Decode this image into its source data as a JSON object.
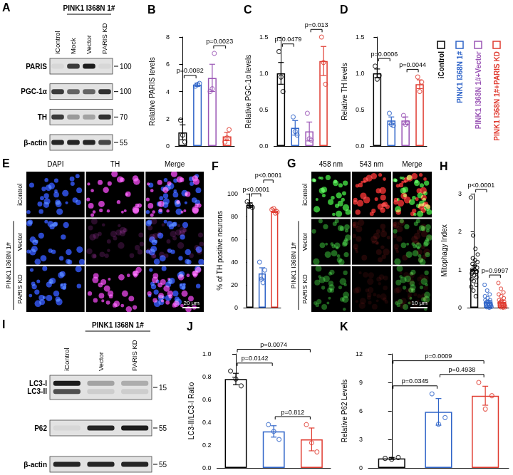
{
  "chart_data": [
    {
      "panel": "B",
      "type": "bar",
      "ylabel": "Relative PARIS levels",
      "categories": [
        null,
        null,
        null,
        null
      ],
      "values": [
        1.0,
        4.5,
        5.0,
        0.7
      ],
      "errors": [
        0.55,
        0.12,
        1.0,
        0.3
      ],
      "points": [
        [
          1.9,
          0.8,
          0.3
        ],
        [
          4.4,
          4.5,
          4.6
        ],
        [
          4.0,
          4.2,
          6.8
        ],
        [
          0.3,
          0.6,
          1.2
        ]
      ],
      "colors": [
        "#000000",
        "#2f64c8",
        "#9a55b5",
        "#e03c31"
      ],
      "ylim": [
        0,
        8
      ],
      "yticks": [
        0,
        2,
        4,
        6,
        8
      ],
      "comparisons": [
        {
          "groups": [
            0,
            1
          ],
          "label": "p=0.0082"
        },
        {
          "groups": [
            2,
            3
          ],
          "label": "p=0.0023"
        }
      ],
      "grid": false,
      "tick_labels": "y"
    },
    {
      "panel": "C",
      "type": "bar",
      "ylabel": "Relative PGC-1α levels",
      "categories": [
        null,
        null,
        null,
        null
      ],
      "values": [
        1.0,
        0.25,
        0.2,
        1.17
      ],
      "errors": [
        0.15,
        0.1,
        0.13,
        0.2
      ],
      "points": [
        [
          1.3,
          0.95,
          0.75
        ],
        [
          0.4,
          0.2,
          0.15
        ],
        [
          0.45,
          0.1,
          0.08
        ],
        [
          1.5,
          1.15,
          0.85
        ]
      ],
      "colors": [
        "#000000",
        "#2f64c8",
        "#9a55b5",
        "#e03c31"
      ],
      "ylim": [
        0,
        1.5
      ],
      "yticks": [
        {
          "value": 0,
          "label": "0.0"
        },
        {
          "value": 0.5,
          "label": "0.5"
        },
        {
          "value": 1,
          "label": "1.0"
        },
        {
          "value": 1.5,
          "label": "1.5"
        }
      ],
      "comparisons": [
        {
          "groups": [
            0,
            1
          ],
          "label": "p=0.0479"
        },
        {
          "groups": [
            2,
            3
          ],
          "label": "p=0.013"
        }
      ],
      "grid": false,
      "tick_labels": "y"
    },
    {
      "panel": "D",
      "type": "bar",
      "ylabel": "Relative TH levels",
      "categories": [
        null,
        null,
        null,
        null
      ],
      "values": [
        1.0,
        0.35,
        0.35,
        0.85
      ],
      "errors": [
        0.06,
        0.05,
        0.05,
        0.06
      ],
      "points": [
        [
          1.1,
          0.92,
          0.97
        ],
        [
          0.45,
          0.3,
          0.28
        ],
        [
          0.42,
          0.3,
          0.32
        ],
        [
          0.95,
          0.75,
          0.88
        ]
      ],
      "colors": [
        "#000000",
        "#2f64c8",
        "#9a55b5",
        "#e03c31"
      ],
      "ylim": [
        0,
        1.5
      ],
      "yticks": [
        {
          "value": 0,
          "label": "0.0"
        },
        {
          "value": 0.5,
          "label": "0.5"
        },
        {
          "value": 1,
          "label": "1.0"
        },
        {
          "value": 1.5,
          "label": "1.5"
        }
      ],
      "comparisons": [
        {
          "groups": [
            0,
            1
          ],
          "label": "p=0.0006"
        },
        {
          "groups": [
            2,
            3
          ],
          "label": "p=0.0044"
        }
      ],
      "grid": false,
      "tick_labels": "y"
    },
    {
      "panel": "F",
      "type": "bar",
      "ylabel": "% of TH positive neurons",
      "categories": [
        null,
        null,
        null
      ],
      "values": [
        90,
        30,
        85
      ],
      "errors": [
        2,
        5,
        1.5
      ],
      "points": [
        [
          93,
          88,
          90,
          89
        ],
        [
          40,
          33,
          22,
          25
        ],
        [
          86,
          84,
          83,
          87
        ]
      ],
      "colors": [
        "#000000",
        "#2f64c8",
        "#e03c31"
      ],
      "ylim": [
        0,
        100
      ],
      "yticks": [
        0,
        20,
        40,
        60,
        80,
        100
      ],
      "comparisons": [
        {
          "groups": [
            0,
            1
          ],
          "label": "p<0.0001"
        },
        {
          "groups": [
            1,
            2
          ],
          "label": "p<0.0001"
        }
      ],
      "grid": false,
      "tick_labels": "y"
    },
    {
      "panel": "H",
      "type": "bar",
      "ylabel": "Mitophagy Index",
      "categories": [
        null,
        null,
        null
      ],
      "values": [
        1.0,
        0.15,
        0.15
      ],
      "errors": [
        0.11,
        0.04,
        0.04
      ],
      "points": [
        [
          2.9,
          1.9,
          1.55,
          1.4,
          1.3,
          1.25,
          1.2,
          1.15,
          1.1,
          1.05,
          1.0,
          1.0,
          0.95,
          0.9,
          0.85,
          0.8,
          0.75,
          0.7,
          0.6,
          0.55,
          0.45,
          0.3
        ],
        [
          0.6,
          0.45,
          0.35,
          0.3,
          0.25,
          0.2,
          0.2,
          0.15,
          0.15,
          0.12,
          0.1,
          0.1,
          0.08,
          0.05,
          0.05,
          0.03,
          0.02,
          0.02,
          0.01,
          0.0
        ],
        [
          0.65,
          0.5,
          0.4,
          0.35,
          0.3,
          0.25,
          0.2,
          0.18,
          0.15,
          0.12,
          0.1,
          0.08,
          0.06,
          0.05,
          0.04,
          0.03,
          0.02,
          0.01,
          0.01,
          0.0
        ]
      ],
      "colors": [
        "#000000",
        "#2f64c8",
        "#e03c31"
      ],
      "ylim": [
        0,
        3
      ],
      "yticks": [
        0,
        1,
        2,
        3
      ],
      "comparisons": [
        {
          "groups": [
            0,
            1
          ],
          "label": "p<0.0001"
        },
        {
          "groups": [
            1,
            2
          ],
          "label": "p=0.9997"
        }
      ],
      "grid": false,
      "tick_labels": "y"
    },
    {
      "panel": "J",
      "type": "bar",
      "ylabel": "LC3-II/LC3-I Ratio",
      "categories": [
        null,
        null,
        null
      ],
      "values": [
        0.78,
        0.32,
        0.25
      ],
      "errors": [
        0.05,
        0.05,
        0.1
      ],
      "points": [
        [
          0.85,
          0.78,
          0.72
        ],
        [
          0.38,
          0.32,
          0.25
        ],
        [
          0.38,
          0.22,
          0.14
        ]
      ],
      "colors": [
        "#000000",
        "#2f64c8",
        "#e03c31"
      ],
      "ylim": [
        0,
        1
      ],
      "yticks": [
        {
          "value": 0,
          "label": "0.0"
        },
        {
          "value": 0.2,
          "label": "0.2"
        },
        {
          "value": 0.4,
          "label": "0.4"
        },
        {
          "value": 0.6,
          "label": "0.6"
        },
        {
          "value": 0.8,
          "label": "0.8"
        },
        {
          "value": 1,
          "label": "1.0"
        }
      ],
      "comparisons": [
        {
          "groups": [
            0,
            1
          ],
          "label": "p=0.0142"
        },
        {
          "groups": [
            1,
            2
          ],
          "label": "p=0.812"
        },
        {
          "groups": [
            0,
            2
          ],
          "label": "p=0.0074"
        }
      ],
      "grid": false,
      "tick_labels": "y"
    },
    {
      "panel": "K",
      "type": "bar",
      "ylabel": "Relative P62 Levels",
      "categories": [
        null,
        null,
        null
      ],
      "values": [
        1.0,
        5.9,
        7.6
      ],
      "errors": [
        0.1,
        1.4,
        1.0
      ],
      "points": [
        [
          1.0,
          0.9,
          1.1
        ],
        [
          7.8,
          4.6,
          5.3
        ],
        [
          9.0,
          6.2,
          7.6
        ]
      ],
      "colors": [
        "#000000",
        "#2f64c8",
        "#e03c31"
      ],
      "ylim": [
        0,
        12
      ],
      "yticks": [
        0,
        3,
        6,
        9,
        12
      ],
      "comparisons": [
        {
          "groups": [
            0,
            1
          ],
          "label": "p=0.0345"
        },
        {
          "groups": [
            1,
            2
          ],
          "label": "p=0.4938"
        },
        {
          "groups": [
            0,
            2
          ],
          "label": "p=0.0009"
        }
      ],
      "grid": false,
      "tick_labels": "y"
    }
  ],
  "figure": {
    "legend": [
      {
        "name": "iControl",
        "color": "#000000"
      },
      {
        "name": "PINK1 I368N 1#",
        "color": "#2f64c8"
      },
      {
        "name": "PINK1 I368N 1#+Vector",
        "color": "#9a55b5"
      },
      {
        "name": "PINK1 I368N 1#+PARIS KD",
        "color": "#e03c31"
      }
    ],
    "blots": [
      {
        "panel": "A",
        "header": "PINK1 I368N 1#",
        "header_lanes": [
          1,
          3
        ],
        "lanes": [
          "iControl",
          "Mock",
          "Vector",
          "PARIS KD"
        ],
        "rows": [
          {
            "labels": [
              "PARIS"
            ],
            "bands": [
              [
                0.05,
                0.8,
                0.95,
                0.05
              ]
            ],
            "marker": 100
          },
          {
            "labels": [
              "PGC-1α"
            ],
            "bands": [
              [
                0.8,
                0.6,
                0.6,
                0.85
              ]
            ],
            "marker": 100
          },
          {
            "labels": [
              "TH"
            ],
            "bands": [
              [
                0.8,
                0.35,
                0.3,
                0.85
              ]
            ],
            "marker": 70
          },
          {
            "labels": [
              "β-actin"
            ],
            "bands": [
              [
                0.9,
                0.9,
                0.9,
                0.75
              ]
            ],
            "marker": 55
          }
        ]
      },
      {
        "panel": "I",
        "header": "PINK1 I368N 1#",
        "header_lanes": [
          1,
          2
        ],
        "lanes": [
          "iControl",
          "Vector",
          "PARIS KD"
        ],
        "rows": [
          {
            "labels": [
              "LC3-I",
              "LC3-II"
            ],
            "bands": [
              [
                0.95,
                0.3,
                0.25
              ],
              [
                0.7,
                0.1,
                0.1
              ]
            ],
            "marker": 15
          },
          {
            "labels": [
              "P62"
            ],
            "bands": [
              [
                0.05,
                0.9,
                0.95
              ]
            ],
            "marker": 55
          },
          {
            "labels": [
              "β-actin"
            ],
            "bands": [
              [
                0.9,
                0.9,
                0.9
              ]
            ],
            "marker": 55
          }
        ]
      }
    ],
    "images": [
      {
        "panel": "E",
        "columns": [
          "DAPI",
          "TH",
          "Merge"
        ],
        "rows": [
          "iControl",
          "Vector",
          "PARIS KD"
        ],
        "group_label": "PINK1 I368N 1#",
        "group_rows": [
          1,
          2
        ],
        "channel_colors": [
          "#3050e0",
          "#d040d0"
        ],
        "signal": [
          [
            0.9,
            0.9
          ],
          [
            0.9,
            0.2
          ],
          [
            0.9,
            0.85
          ]
        ],
        "scale_bar": "20 μm"
      },
      {
        "panel": "G",
        "columns": [
          "458 nm",
          "543 nm",
          "Merge"
        ],
        "rows": [
          "iControl",
          "Vector",
          "PARIS KD"
        ],
        "group_label": "PINK1 I368N 1#",
        "group_rows": [
          1,
          2
        ],
        "channel_colors": [
          "#40d040",
          "#e03030"
        ],
        "signal": [
          [
            0.85,
            0.85
          ],
          [
            0.5,
            0.15
          ],
          [
            0.45,
            0.1
          ]
        ],
        "scale_bar": "10 μm"
      }
    ]
  }
}
